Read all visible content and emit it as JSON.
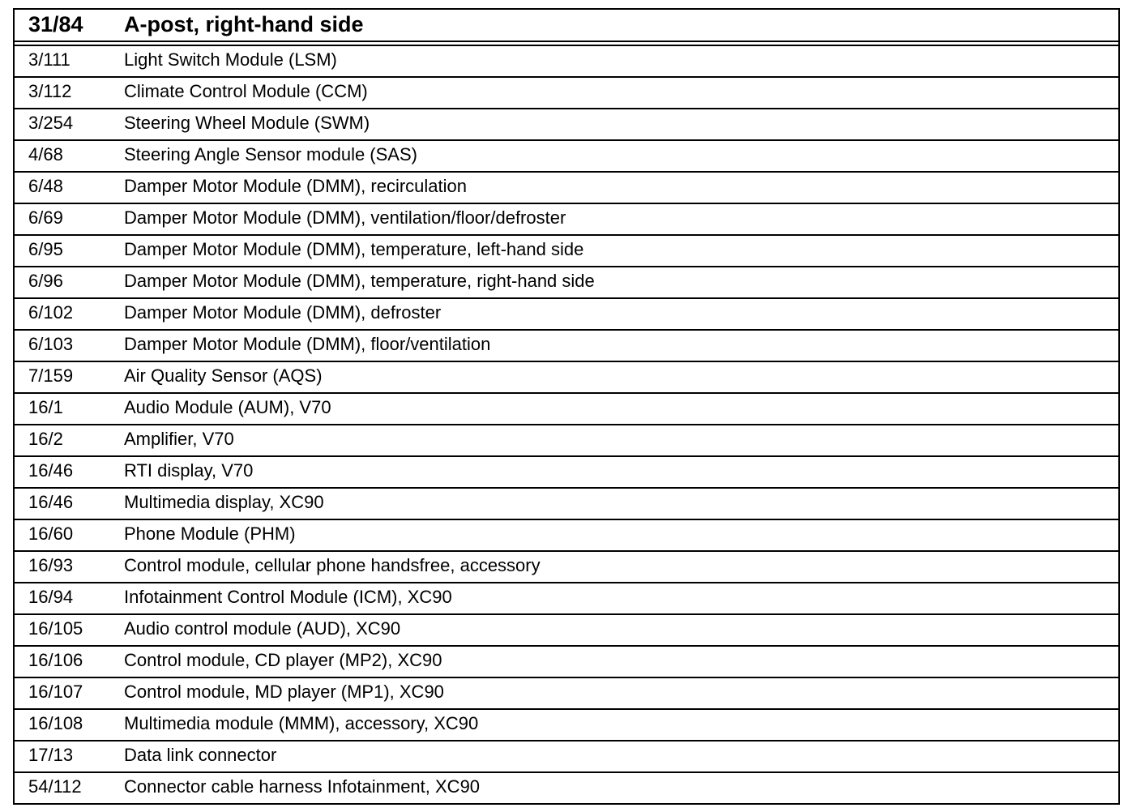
{
  "header": {
    "code": "31/84",
    "title": "A-post, right-hand side"
  },
  "rows": [
    {
      "code": "3/111",
      "desc": "Light Switch Module (LSM)"
    },
    {
      "code": "3/112",
      "desc": "Climate Control Module (CCM)"
    },
    {
      "code": "3/254",
      "desc": "Steering Wheel Module (SWM)"
    },
    {
      "code": "4/68",
      "desc": "Steering Angle Sensor module (SAS)"
    },
    {
      "code": "6/48",
      "desc": "Damper Motor Module (DMM), recirculation"
    },
    {
      "code": "6/69",
      "desc": "Damper Motor Module (DMM), ventilation/floor/defroster"
    },
    {
      "code": "6/95",
      "desc": "Damper Motor Module (DMM), temperature, left-hand side"
    },
    {
      "code": "6/96",
      "desc": "Damper Motor Module (DMM), temperature, right-hand side"
    },
    {
      "code": "6/102",
      "desc": "Damper Motor Module (DMM), defroster"
    },
    {
      "code": "6/103",
      "desc": "Damper Motor Module (DMM), floor/ventilation"
    },
    {
      "code": "7/159",
      "desc": "Air Quality Sensor (AQS)"
    },
    {
      "code": "16/1",
      "desc": "Audio Module (AUM), V70"
    },
    {
      "code": "16/2",
      "desc": "Amplifier, V70"
    },
    {
      "code": "16/46",
      "desc": "RTI display, V70"
    },
    {
      "code": "16/46",
      "desc": "Multimedia display, XC90"
    },
    {
      "code": "16/60",
      "desc": "Phone Module (PHM)"
    },
    {
      "code": "16/93",
      "desc": "Control module, cellular phone handsfree, accessory"
    },
    {
      "code": "16/94",
      "desc": "Infotainment Control Module (ICM), XC90"
    },
    {
      "code": "16/105",
      "desc": "Audio control module (AUD), XC90"
    },
    {
      "code": "16/106",
      "desc": "Control module, CD player (MP2), XC90"
    },
    {
      "code": "16/107",
      "desc": "Control module, MD player (MP1), XC90"
    },
    {
      "code": "16/108",
      "desc": "Multimedia module (MMM), accessory, XC90"
    },
    {
      "code": "17/13",
      "desc": "Data link connector"
    },
    {
      "code": "54/112",
      "desc": "Connector cable harness Infotainment, XC90"
    }
  ]
}
